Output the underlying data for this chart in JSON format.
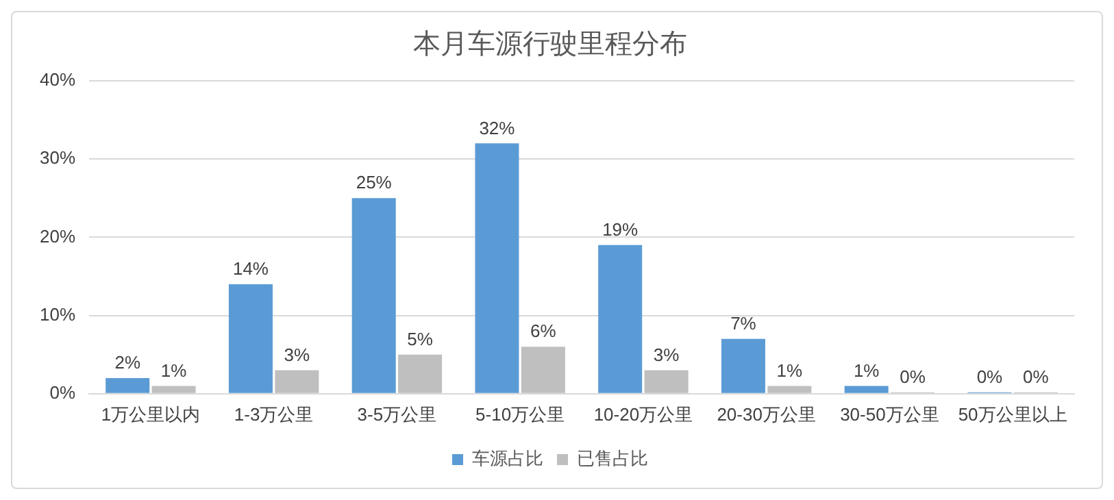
{
  "chart_data": {
    "type": "bar",
    "title": "本月车源行驶里程分布",
    "categories": [
      "1万公里以内",
      "1-3万公里",
      "3-5万公里",
      "5-10万公里",
      "10-20万公里",
      "20-30万公里",
      "30-50万公里",
      "50万公里以上"
    ],
    "series": [
      {
        "name": "车源占比",
        "color": "#5b9bd5",
        "values": [
          2,
          14,
          25,
          32,
          19,
          7,
          1,
          0
        ],
        "value_labels": [
          "2%",
          "14%",
          "25%",
          "32%",
          "19%",
          "7%",
          "1%",
          "0%"
        ]
      },
      {
        "name": "已售占比",
        "color": "#bfbfbf",
        "values": [
          1,
          3,
          5,
          6,
          3,
          1,
          0,
          0
        ],
        "value_labels": [
          "1%",
          "3%",
          "5%",
          "6%",
          "3%",
          "1%",
          "0%",
          "0%"
        ]
      }
    ],
    "ylim": [
      0,
      40
    ],
    "yticks": [
      {
        "value": 0,
        "label": "0%"
      },
      {
        "value": 10,
        "label": "10%"
      },
      {
        "value": 20,
        "label": "20%"
      },
      {
        "value": 30,
        "label": "30%"
      },
      {
        "value": 40,
        "label": "40%"
      }
    ],
    "grid": "y",
    "legend": "bottom"
  }
}
